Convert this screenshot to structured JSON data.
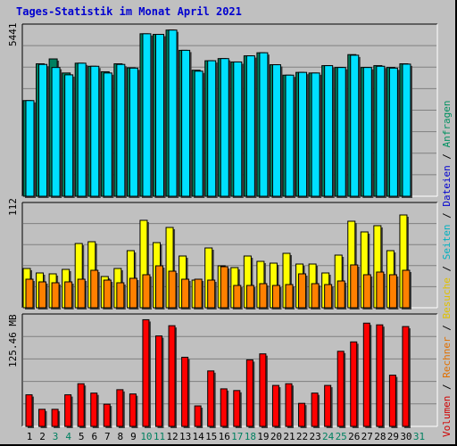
{
  "title": "Tages-Statistik im Monat April 2021",
  "axis_labels": {
    "top": "5441",
    "middle": "112",
    "bottom": "125.46 MB"
  },
  "legend": [
    {
      "text": "Volumen",
      "color": "#d00000"
    },
    {
      "text": " / ",
      "color": "#000000"
    },
    {
      "text": "Rechner",
      "color": "#e07000"
    },
    {
      "text": " / ",
      "color": "#000000"
    },
    {
      "text": "Besuche",
      "color": "#e0c000"
    },
    {
      "text": " / ",
      "color": "#000000"
    },
    {
      "text": "Seiten",
      "color": "#00b0c0"
    },
    {
      "text": " / ",
      "color": "#000000"
    },
    {
      "text": "Dateien",
      "color": "#0000d0"
    },
    {
      "text": " / ",
      "color": "#000000"
    },
    {
      "text": "Anfragen",
      "color": "#009060"
    }
  ],
  "colors": {
    "hits": "#008060",
    "files": "#0040c0",
    "pages": "#00e0ff",
    "visits": "#ffff00",
    "sites": "#ff8000",
    "kbytes": "#ff0000",
    "weekend_label": "#008060"
  },
  "chart_data": {
    "type": "bar",
    "title": "Tages-Statistik im Monat April 2021",
    "x": [
      "1",
      "2",
      "3",
      "4",
      "5",
      "6",
      "7",
      "8",
      "9",
      "10",
      "11",
      "12",
      "13",
      "14",
      "15",
      "16",
      "17",
      "18",
      "19",
      "20",
      "21",
      "22",
      "23",
      "24",
      "25",
      "26",
      "27",
      "28",
      "29",
      "30",
      "31"
    ],
    "weekend": [
      "3",
      "4",
      "10",
      "11",
      "17",
      "18",
      "24",
      "25",
      "31"
    ],
    "panels": [
      {
        "label": "5441",
        "ylim": [
          0,
          5441
        ],
        "series": [
          {
            "name": "Anfragen",
            "values": [
              3120,
              4320,
              4480,
              4020,
              4340,
              4240,
              4060,
              4320,
              4190,
              5300,
              5280,
              5420,
              4760,
              4110,
              4420,
              4490,
              4380,
              4580,
              4680,
              4290,
              3950,
              4040,
              4020,
              4260,
              4200,
              4620,
              4200,
              4260,
              4200,
              4320,
              0
            ]
          },
          {
            "name": "Dateien",
            "values": [
              3120,
              4300,
              4200,
              3960,
              4340,
              4240,
              4020,
              4300,
              4180,
              5300,
              5280,
              5420,
              4760,
              4080,
              4420,
              4490,
              4380,
              4580,
              4680,
              4290,
              3950,
              4040,
              4020,
              4260,
              4200,
              4600,
              4200,
              4240,
              4180,
              4310,
              0
            ]
          }
        ]
      },
      {
        "label": "112",
        "ylim": [
          0,
          112
        ],
        "series": [
          {
            "name": "Besuche",
            "values": [
              44,
              39,
              38,
              43,
              72,
              74,
              35,
              44,
              64,
              98,
              73,
              90,
              58,
              31,
              67,
              47,
              45,
              58,
              52,
              50,
              61,
              49,
              49,
              39,
              59,
              97,
              85,
              92,
              64,
              104,
              0
            ]
          },
          {
            "name": "Seiten",
            "values": [
              32,
              29,
              28,
              29,
              32,
              42,
              31,
              28,
              33,
              37,
              47,
              41,
              32,
              32,
              31,
              46,
              25,
              25,
              27,
              25,
              26,
              38,
              27,
              26,
              30,
              48,
              37,
              40,
              37,
              42,
              0
            ]
          }
        ]
      },
      {
        "label": "125.46 MB",
        "ylim": [
          0,
          125.46
        ],
        "series": [
          {
            "name": "Volumen",
            "values": [
              37,
              20,
              20,
              37,
              50,
              39,
              26,
              43,
              38,
              125,
              106,
              118,
              81,
              24,
              65,
              44,
              42,
              78,
              85,
              48,
              50,
              27,
              39,
              48,
              88,
              99,
              121,
              119,
              60,
              117,
              0
            ]
          }
        ]
      }
    ]
  }
}
